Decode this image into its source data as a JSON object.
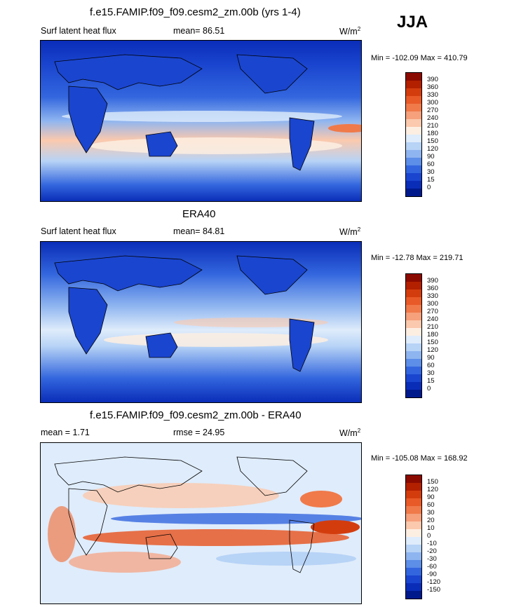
{
  "season": "JJA",
  "panels": [
    {
      "title": "f.e15.FAMIP.f09_f09.cesm2_zm.00b (yrs 1-4)",
      "left_label": "Surf latent heat flux",
      "stat_label": "mean=  86.51",
      "units": "W/m",
      "units_sup": "2",
      "minmax": "Min = -102.09 Max = 410.79",
      "levels": [
        "390",
        "360",
        "330",
        "300",
        "270",
        "240",
        "210",
        "180",
        "150",
        "120",
        "90",
        "60",
        "30",
        "15",
        "0"
      ],
      "colors": [
        "#8b0a00",
        "#b22000",
        "#d33d0e",
        "#e85a28",
        "#f07a4a",
        "#f6a07c",
        "#fbc9ad",
        "#fdeee2",
        "#dfecfb",
        "#b7d3f6",
        "#8fb5f0",
        "#5d8ee8",
        "#3366de",
        "#1a45cf",
        "#0a2db8",
        "#001a8c"
      ]
    },
    {
      "title": "ERA40",
      "left_label": "Surf latent heat flux",
      "stat_label": "mean=  84.81",
      "units": "W/m",
      "units_sup": "2",
      "minmax": "Min = -12.78 Max = 219.71",
      "levels": [
        "390",
        "360",
        "330",
        "300",
        "270",
        "240",
        "210",
        "180",
        "150",
        "120",
        "90",
        "60",
        "30",
        "15",
        "0"
      ],
      "colors": [
        "#8b0a00",
        "#b22000",
        "#d33d0e",
        "#e85a28",
        "#f07a4a",
        "#f6a07c",
        "#fbc9ad",
        "#fdeee2",
        "#dfecfb",
        "#b7d3f6",
        "#8fb5f0",
        "#5d8ee8",
        "#3366de",
        "#1a45cf",
        "#0a2db8",
        "#001a8c"
      ]
    },
    {
      "title": "f.e15.FAMIP.f09_f09.cesm2_zm.00b - ERA40",
      "left_label": "mean =   1.71",
      "stat_label": "rmse =  24.95",
      "units": "W/m",
      "units_sup": "2",
      "minmax": "Min = -105.08 Max = 168.92",
      "levels": [
        "150",
        "120",
        "90",
        "60",
        "30",
        "20",
        "10",
        "0",
        "-10",
        "-20",
        "-30",
        "-60",
        "-90",
        "-120",
        "-150"
      ],
      "colors": [
        "#8b0a00",
        "#b22000",
        "#d33d0e",
        "#e85a28",
        "#f07a4a",
        "#f6a07c",
        "#fbc9ad",
        "#fdeee2",
        "#dfecfb",
        "#b7d3f6",
        "#8fb5f0",
        "#5d8ee8",
        "#3366de",
        "#1a45cf",
        "#0a2db8",
        "#001a8c"
      ]
    }
  ]
}
